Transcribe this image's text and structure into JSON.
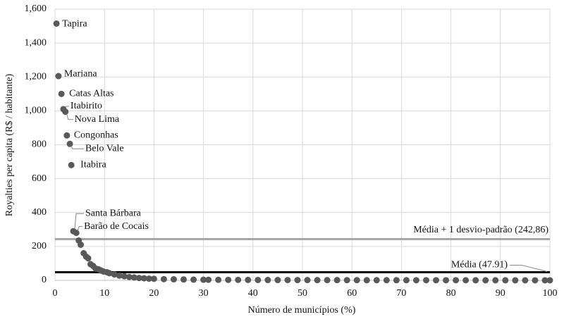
{
  "chart_data": {
    "type": "scatter",
    "xlabel": "Número de municípios (%)",
    "ylabel": "Royalties per capita (R$ / habitante)",
    "xlim": [
      0,
      100
    ],
    "xticks": [
      0,
      10,
      20,
      30,
      40,
      50,
      60,
      70,
      80,
      90,
      100
    ],
    "ylim": [
      0,
      1600
    ],
    "yticks": [
      0,
      200,
      400,
      600,
      800,
      {
        "value": 1000,
        "label": "1,000"
      },
      {
        "value": 1200,
        "label": "1,200"
      },
      {
        "value": 1400,
        "label": "1,400"
      },
      {
        "value": 1600,
        "label": "1,600"
      }
    ],
    "grid": true,
    "color": "#595959",
    "labeled_points": {
      "x": [
        0.3,
        0.7,
        1.3,
        1.7,
        2.1,
        2.4,
        3.0,
        3.3,
        3.7,
        4.3
      ],
      "y": [
        1515,
        1205,
        1100,
        1010,
        995,
        855,
        805,
        680,
        290,
        280
      ],
      "labels": [
        "Tapira",
        "Mariana",
        "Catas Altas",
        "Itabirito",
        "Nova Lima",
        "Congonhas",
        "Belo Vale",
        "Itabira",
        "Santa Bárbara",
        "Barão de Cocais"
      ]
    },
    "x": [
      4.8,
      5.2,
      5.8,
      6.3,
      6.7,
      7.2,
      7.7,
      8.2,
      8.8,
      9.3,
      9.8,
      10.5,
      11,
      12,
      13,
      14,
      15,
      16,
      17,
      18,
      19,
      20,
      22,
      24,
      26,
      28,
      30,
      31,
      33,
      35,
      37,
      39,
      41,
      43,
      45,
      47,
      49,
      51,
      53,
      55,
      57,
      59,
      61,
      63,
      65,
      67,
      69,
      71,
      73,
      75,
      77,
      79,
      81,
      83,
      85,
      87,
      89,
      91,
      93,
      95,
      97,
      99,
      100
    ],
    "y": [
      235,
      210,
      160,
      140,
      130,
      95,
      85,
      70,
      65,
      58,
      52,
      48,
      42,
      35,
      28,
      24,
      20,
      17,
      14,
      12,
      10,
      9,
      7,
      6,
      5,
      4,
      3.5,
      3.2,
      3,
      2.8,
      2.6,
      2.4,
      2.2,
      2,
      1.9,
      1.8,
      1.7,
      1.6,
      1.5,
      1.4,
      1.3,
      1.2,
      1.1,
      1,
      0.95,
      0.9,
      0.85,
      0.8,
      0.75,
      0.7,
      0.65,
      0.6,
      0.55,
      0.5,
      0.45,
      0.4,
      0.35,
      0.3,
      0.25,
      0.2,
      0.15,
      0.1,
      0.05
    ],
    "hlines": [
      {
        "value": 242.86,
        "label": "Média + 1 desvio-padrão (242,86)",
        "color": "#a6a6a6"
      },
      {
        "value": 47.91,
        "label": "Média (47.91)",
        "color": "#000000"
      }
    ]
  }
}
